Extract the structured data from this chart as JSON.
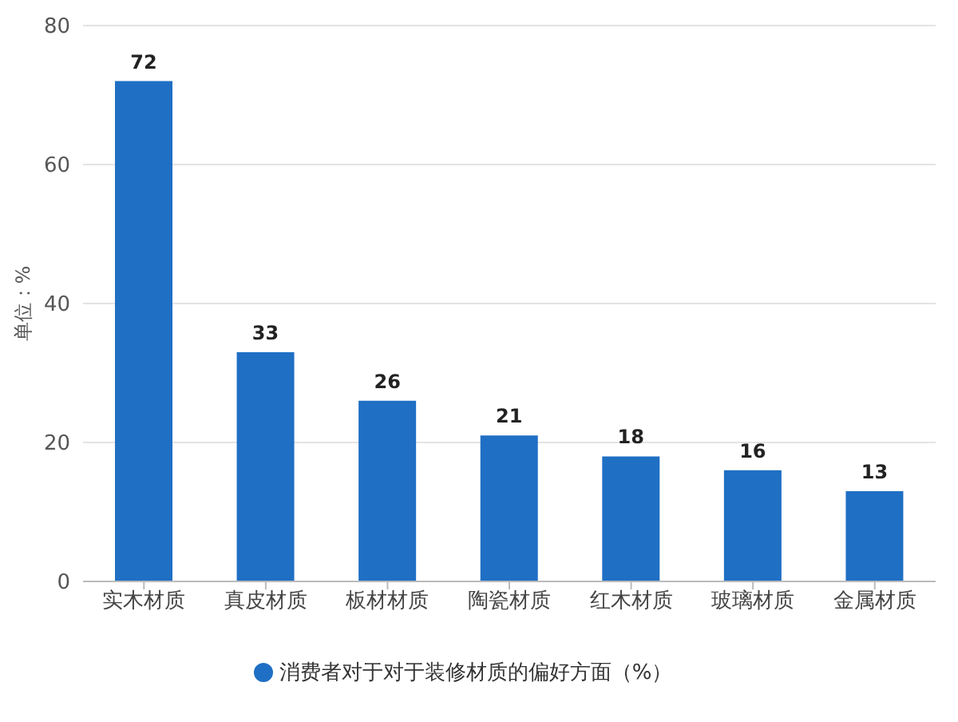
{
  "chart_data": {
    "type": "bar",
    "ylabel": "单位：%",
    "categories": [
      "实木材质",
      "真皮材质",
      "板材材质",
      "陶瓷材质",
      "红木材质",
      "玻璃材质",
      "金属材质"
    ],
    "series": [
      {
        "name": "消费者对于对于装修材质的偏好方面（%）",
        "color": "#1f6fc4",
        "values": [
          72,
          33,
          26,
          21,
          18,
          16,
          13
        ]
      }
    ],
    "ylim": [
      0,
      80
    ],
    "yticks": [
      0,
      20,
      40,
      60,
      80
    ],
    "grid": "y",
    "legend": "bottom",
    "data_labels": true
  }
}
